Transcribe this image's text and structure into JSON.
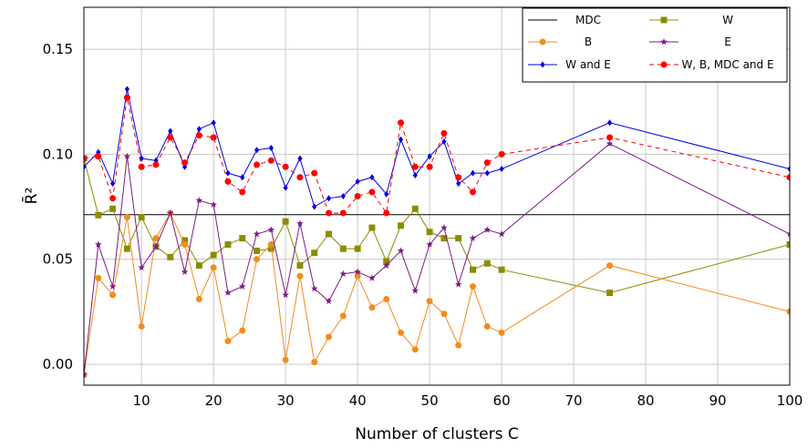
{
  "chart_data": {
    "type": "line",
    "title": "",
    "xlabel": "Number of clusters C",
    "ylabel": "R̄²",
    "xlim": [
      2,
      100
    ],
    "ylim": [
      -0.01,
      0.17
    ],
    "xticks": [
      10,
      20,
      30,
      40,
      50,
      60,
      70,
      80,
      90,
      100
    ],
    "yticks": [
      0.0,
      0.05,
      0.1,
      0.15
    ],
    "ytick_labels": [
      "0.00",
      "0.05",
      "0.10",
      "0.15"
    ],
    "grid": true,
    "legend_position": "top-right",
    "legend_columns": 2,
    "series": [
      {
        "name": "MDC",
        "color": "#000000",
        "marker": "none",
        "dash": "solid",
        "x": [
          2,
          100
        ],
        "y": [
          0.0712,
          0.0712
        ]
      },
      {
        "name": "W",
        "color": "#8c8c00",
        "marker": "square",
        "dash": "solid",
        "x": [
          2,
          4,
          6,
          8,
          10,
          12,
          14,
          16,
          18,
          20,
          22,
          24,
          26,
          28,
          30,
          32,
          34,
          36,
          38,
          40,
          42,
          44,
          46,
          48,
          50,
          52,
          54,
          56,
          58,
          60,
          75,
          100
        ],
        "y": [
          0.098,
          0.071,
          0.074,
          0.055,
          0.07,
          0.056,
          0.051,
          0.059,
          0.047,
          0.052,
          0.057,
          0.06,
          0.054,
          0.055,
          0.068,
          0.047,
          0.053,
          0.062,
          0.055,
          0.055,
          0.065,
          0.049,
          0.066,
          0.074,
          0.063,
          0.06,
          0.06,
          0.045,
          0.048,
          0.045,
          0.034,
          0.057
        ]
      },
      {
        "name": "B",
        "color": "#f28c1e",
        "marker": "circle",
        "dash": "solid",
        "x": [
          2,
          4,
          6,
          8,
          10,
          12,
          14,
          16,
          18,
          20,
          22,
          24,
          26,
          28,
          30,
          32,
          34,
          36,
          38,
          40,
          42,
          44,
          46,
          48,
          50,
          52,
          54,
          56,
          58,
          60,
          75,
          100
        ],
        "y": [
          -0.005,
          0.041,
          0.033,
          0.07,
          0.018,
          0.06,
          0.072,
          0.057,
          0.031,
          0.046,
          0.011,
          0.016,
          0.05,
          0.057,
          0.002,
          0.042,
          0.001,
          0.013,
          0.023,
          0.042,
          0.027,
          0.031,
          0.015,
          0.007,
          0.03,
          0.024,
          0.009,
          0.037,
          0.018,
          0.015,
          0.047,
          0.025
        ]
      },
      {
        "name": "E",
        "color": "#7f1a85",
        "marker": "star",
        "dash": "solid",
        "x": [
          2,
          4,
          6,
          8,
          10,
          12,
          14,
          16,
          18,
          20,
          22,
          24,
          26,
          28,
          30,
          32,
          34,
          36,
          38,
          40,
          42,
          44,
          46,
          48,
          50,
          52,
          54,
          56,
          58,
          60,
          75,
          100
        ],
        "y": [
          -0.005,
          0.057,
          0.037,
          0.099,
          0.046,
          0.056,
          0.072,
          0.044,
          0.078,
          0.076,
          0.034,
          0.037,
          0.062,
          0.064,
          0.033,
          0.067,
          0.036,
          0.03,
          0.043,
          0.044,
          0.041,
          0.047,
          0.054,
          0.035,
          0.057,
          0.065,
          0.038,
          0.06,
          0.064,
          0.062,
          0.105,
          0.062
        ]
      },
      {
        "name": "W and E",
        "color": "#0000e6",
        "marker": "diamond",
        "dash": "solid",
        "x": [
          2,
          4,
          6,
          8,
          10,
          12,
          14,
          16,
          18,
          20,
          22,
          24,
          26,
          28,
          30,
          32,
          34,
          36,
          38,
          40,
          42,
          44,
          46,
          48,
          50,
          52,
          54,
          56,
          58,
          60,
          75,
          100
        ],
        "y": [
          0.094,
          0.101,
          0.086,
          0.131,
          0.098,
          0.097,
          0.111,
          0.094,
          0.112,
          0.115,
          0.091,
          0.089,
          0.102,
          0.103,
          0.084,
          0.098,
          0.075,
          0.079,
          0.08,
          0.087,
          0.089,
          0.081,
          0.107,
          0.09,
          0.099,
          0.106,
          0.086,
          0.091,
          0.091,
          0.093,
          0.115,
          0.093
        ]
      },
      {
        "name": "W, B, MDC and E",
        "color": "#ff0000",
        "marker": "circle",
        "dash": "dashed",
        "x": [
          2,
          4,
          6,
          8,
          10,
          12,
          14,
          16,
          18,
          20,
          22,
          24,
          26,
          28,
          30,
          32,
          34,
          36,
          38,
          40,
          42,
          44,
          46,
          48,
          50,
          52,
          54,
          56,
          58,
          60,
          75,
          100
        ],
        "y": [
          0.098,
          0.099,
          0.079,
          0.127,
          0.094,
          0.095,
          0.108,
          0.096,
          0.109,
          0.108,
          0.087,
          0.082,
          0.095,
          0.097,
          0.094,
          0.089,
          0.091,
          0.072,
          0.072,
          0.08,
          0.082,
          0.072,
          0.115,
          0.094,
          0.094,
          0.11,
          0.089,
          0.082,
          0.096,
          0.1,
          0.108,
          0.089
        ]
      }
    ]
  }
}
